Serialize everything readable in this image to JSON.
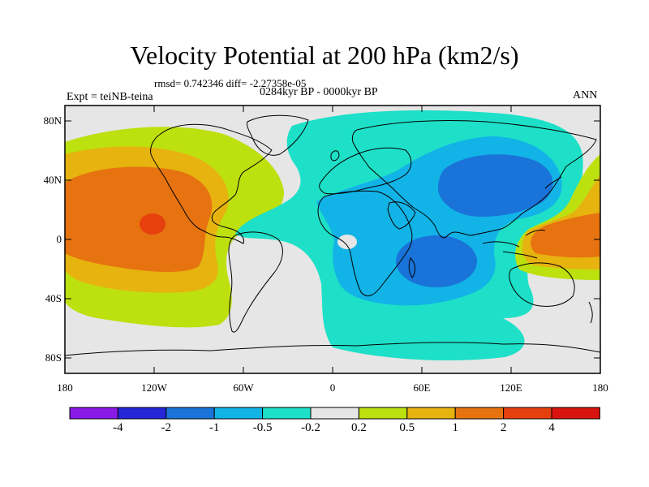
{
  "title": "Velocity Potential at 200 hPa (km2/s)",
  "stats": "rmsd= 0.742346 diff= -2.27358e-05",
  "period": "0284kyr BP - 0000kyr BP",
  "experiment": "Expt = teiNB-teina",
  "season": "ANN",
  "axes": {
    "y_labels": [
      "80N",
      "40N",
      "0",
      "40S",
      "80S"
    ],
    "x_labels": [
      "180",
      "120W",
      "60W",
      "0",
      "60E",
      "120E",
      "180"
    ]
  },
  "colorbar": {
    "labels": [
      "-4",
      "-2",
      "-1",
      "-0.5",
      "-0.2",
      "0.2",
      "0.5",
      "1",
      "2",
      "4"
    ],
    "colors": [
      "#8a1ae6",
      "#2626d9",
      "#1a73d9",
      "#12b3e6",
      "#1ee0c8",
      "#e6e6e6",
      "#bde00f",
      "#e6b30f",
      "#e6730f",
      "#e6400f",
      "#d9140f"
    ]
  }
}
